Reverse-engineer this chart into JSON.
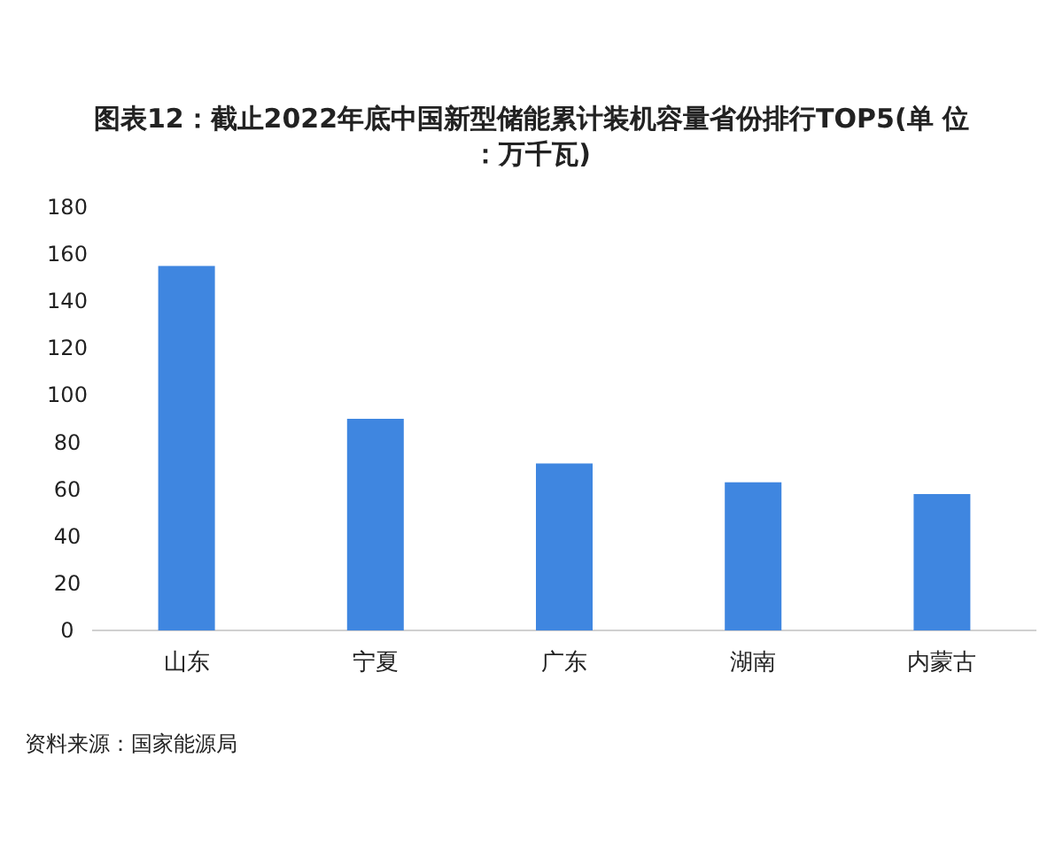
{
  "chart_data": {
    "type": "bar",
    "title": "图表12：截止2022年底中国新型储能累计装机容量省份排行TOP5(单 位：万千瓦)",
    "categories": [
      "山东",
      "宁夏",
      "广东",
      "湖南",
      "内蒙古"
    ],
    "values": [
      155,
      90,
      71,
      63,
      58
    ],
    "color": "#3f86e0",
    "ylim": [
      0,
      180
    ],
    "yticks": [
      0,
      20,
      40,
      60,
      80,
      100,
      120,
      140,
      160,
      180
    ],
    "grid": false,
    "annotations": [
      "资料来源：国家能源局"
    ]
  }
}
